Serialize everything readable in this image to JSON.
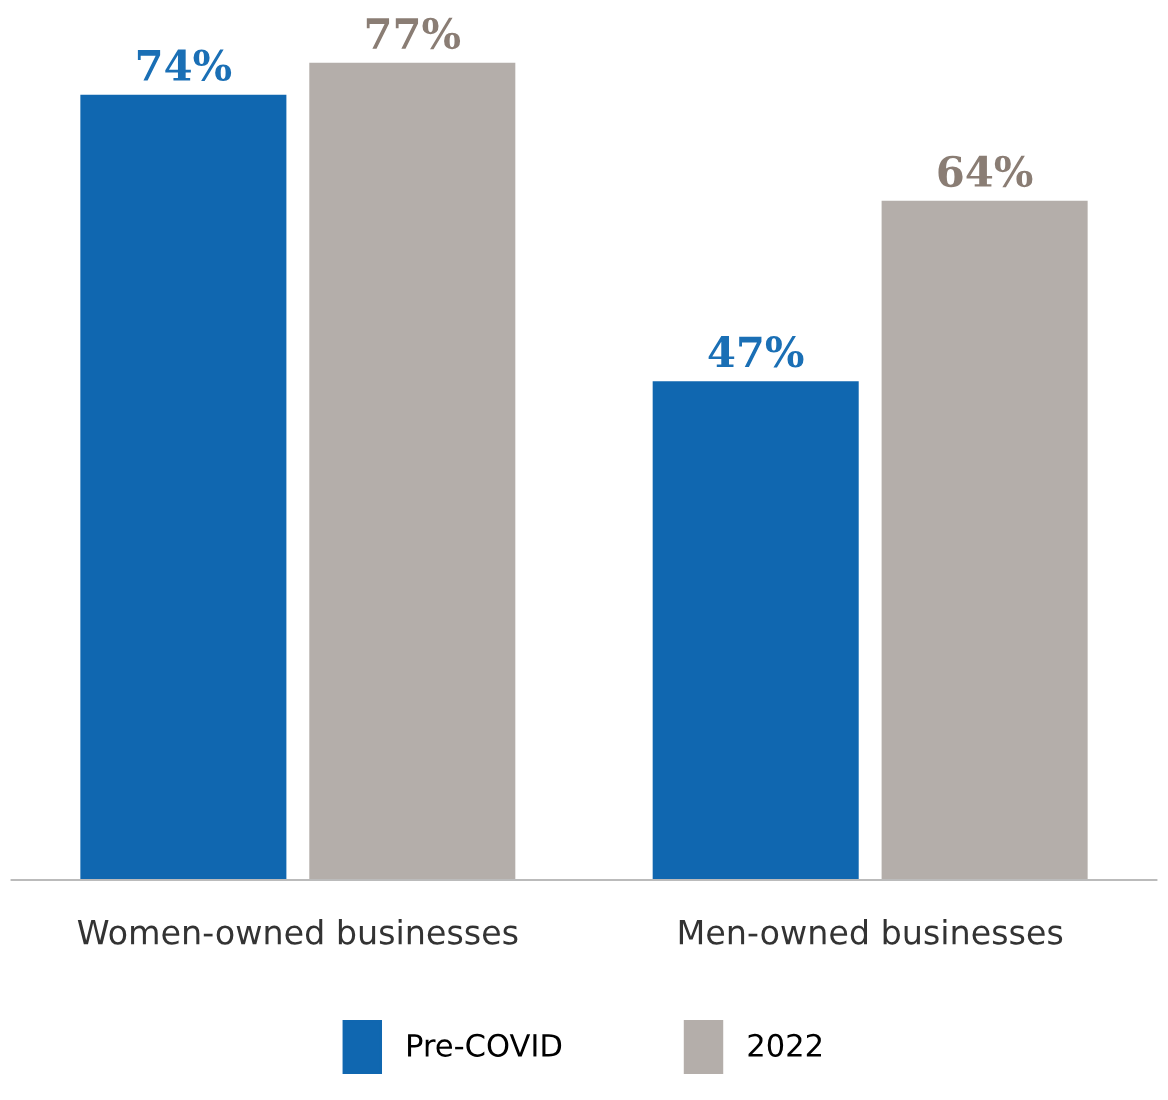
{
  "chart_data": {
    "type": "bar",
    "categories": [
      "Women-owned businesses",
      "Men-owned businesses"
    ],
    "series": [
      {
        "name": "Pre-COVID",
        "color": "#1067b0",
        "values": [
          74,
          47
        ],
        "value_labels": [
          "74%",
          "47%"
        ]
      },
      {
        "name": "2022",
        "color": "#b4aeaa",
        "values": [
          77,
          64
        ],
        "value_labels": [
          "77%",
          "64%"
        ]
      }
    ],
    "legend": "bottom"
  }
}
